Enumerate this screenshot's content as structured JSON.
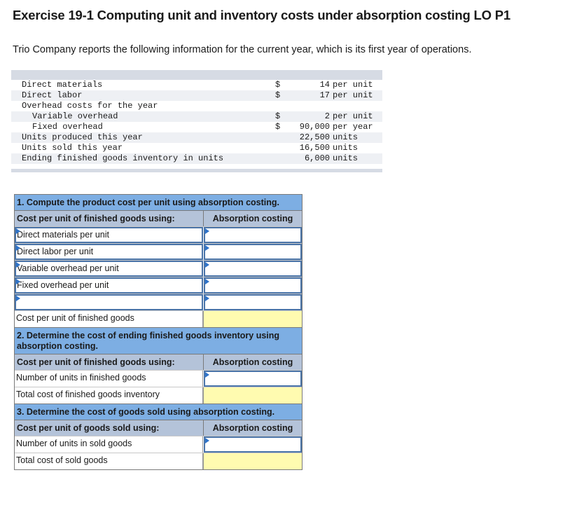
{
  "header": {
    "title": "Exercise 19-1 Computing unit and inventory costs under absorption costing LO P1",
    "intro": "Trio Company reports the following information for the current year, which is its first year of operations."
  },
  "given_data": {
    "rows": [
      {
        "label": "Direct materials",
        "currency": "$",
        "value": "14",
        "unit": "per unit",
        "indent": false
      },
      {
        "label": "Direct labor",
        "currency": "$",
        "value": "17",
        "unit": "per unit",
        "indent": false
      },
      {
        "label": "Overhead costs for the year",
        "currency": "",
        "value": "",
        "unit": "",
        "indent": false
      },
      {
        "label": "Variable overhead",
        "currency": "$",
        "value": "2",
        "unit": "per unit",
        "indent": true
      },
      {
        "label": "Fixed overhead",
        "currency": "$",
        "value": "90,000",
        "unit": "per year",
        "indent": true
      },
      {
        "label": "Units produced this year",
        "currency": "",
        "value": "22,500",
        "unit": "units",
        "indent": false
      },
      {
        "label": "Units sold this year",
        "currency": "",
        "value": "16,500",
        "unit": "units",
        "indent": false
      },
      {
        "label": "Ending finished goods inventory in units",
        "currency": "",
        "value": "6,000",
        "unit": "units",
        "indent": false
      }
    ]
  },
  "part1": {
    "title": "1. Compute the product cost per unit using absorption costing.",
    "col1_header": "Cost per unit of finished goods using:",
    "col2_header": "Absorption costing",
    "input_rows": [
      {
        "label": "Direct materials per unit",
        "value": ""
      },
      {
        "label": "Direct labor per unit",
        "value": ""
      },
      {
        "label": "Variable overhead per unit",
        "value": ""
      },
      {
        "label": "Fixed overhead per unit",
        "value": ""
      },
      {
        "label": "",
        "value": ""
      }
    ],
    "total_label": "Cost per unit of finished goods",
    "total_value": ""
  },
  "part2": {
    "title": "2. Determine the cost of ending finished goods inventory using absorption costing.",
    "col1_header": "Cost per unit of finished goods using:",
    "col2_header": "Absorption costing",
    "units_label": "Number of units in finished goods",
    "units_value": "",
    "total_label": "Total cost of finished goods inventory",
    "total_value": ""
  },
  "part3": {
    "title": "3. Determine the cost of goods sold using absorption costing.",
    "col1_header": "Cost per unit of goods sold using:",
    "col2_header": "Absorption costing",
    "units_label": "Number of units in sold goods",
    "units_value": "",
    "total_label": "Total cost of sold goods",
    "total_value": ""
  },
  "colors": {
    "section_header": "#7daee3",
    "column_header": "#b4c3d9",
    "input_border": "#4a74a8",
    "computed_cell": "#fffbb0",
    "dropdown_marker": "#2e73c9",
    "data_band": "#d6dbe4"
  }
}
